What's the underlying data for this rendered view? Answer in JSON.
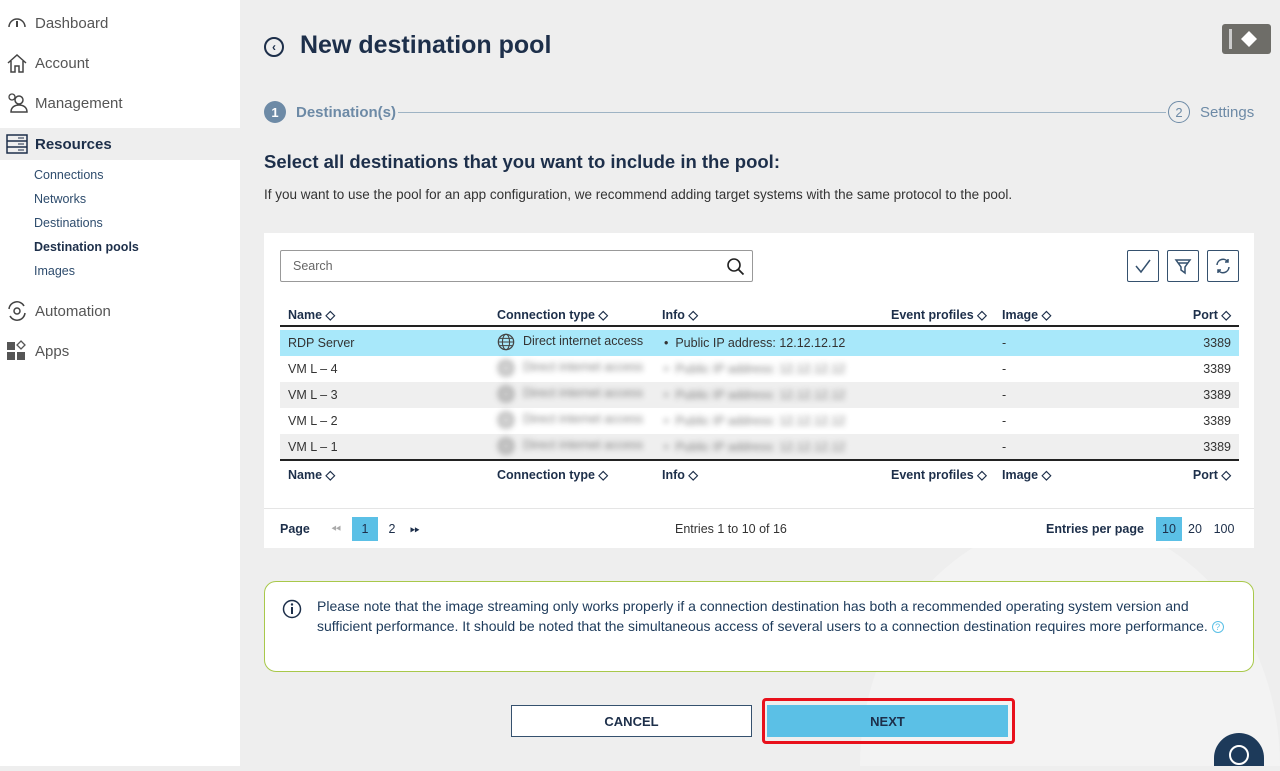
{
  "sidebar": {
    "items": [
      {
        "label": "Dashboard",
        "icon": "dashboard-gauge-icon"
      },
      {
        "label": "Account",
        "icon": "home-icon"
      },
      {
        "label": "Management",
        "icon": "users-icon"
      },
      {
        "label": "Resources",
        "icon": "server-icon",
        "active": true
      },
      {
        "label": "Automation",
        "icon": "automation-gear-icon"
      },
      {
        "label": "Apps",
        "icon": "apps-grid-icon"
      }
    ],
    "sub_items": [
      {
        "label": "Connections"
      },
      {
        "label": "Networks"
      },
      {
        "label": "Destinations"
      },
      {
        "label": "Destination pools",
        "active": true
      },
      {
        "label": "Images"
      }
    ]
  },
  "header": {
    "title": "New destination pool"
  },
  "stepper": [
    {
      "num": "1",
      "label": "Destination(s)",
      "active": true
    },
    {
      "num": "2",
      "label": "Settings"
    }
  ],
  "main": {
    "heading": "Select all destinations that you want to include in the pool:",
    "subtitle": "If you want to use the pool for an app configuration, we recommend adding target systems with the same protocol to the pool.",
    "search_placeholder": "Search"
  },
  "table": {
    "columns": [
      "Name",
      "Connection type",
      "Info",
      "Event profiles",
      "Image",
      "Port"
    ],
    "rows": [
      {
        "name": "RDP Server",
        "conn": "Direct internet access",
        "info": "Public IP address: 12.12.12.12",
        "event": "",
        "image": "-",
        "port": "3389",
        "selected": true
      },
      {
        "name": "VM L – 4",
        "conn": "Direct internet access",
        "info": "Public IP address: 12.12.12.12",
        "event": "",
        "image": "-",
        "port": "3389"
      },
      {
        "name": "VM L – 3",
        "conn": "Direct internet access",
        "info": "Public IP address: 12.12.12.12",
        "event": "",
        "image": "-",
        "port": "3389"
      },
      {
        "name": "VM L – 2",
        "conn": "Direct internet access",
        "info": "Public IP address: 12.12.12.12",
        "event": "",
        "image": "-",
        "port": "3389"
      },
      {
        "name": "VM L – 1",
        "conn": "Direct internet access",
        "info": "Public IP address: 12.12.12.12",
        "event": "",
        "image": "-",
        "port": "3389"
      }
    ]
  },
  "pagination": {
    "label": "Page",
    "pages": [
      "1",
      "2"
    ],
    "current": "1",
    "entries": "Entries 1 to 10 of 16",
    "per_page_label": "Entries per page",
    "per_page_options": [
      "10",
      "20",
      "100"
    ],
    "per_page_selected": "10"
  },
  "notice": {
    "text": "Please note that the image streaming only works properly if a connection destination has both a recommended operating system version and sufficient performance. It should be noted that the simultaneous access of several users to a connection destination requires more performance."
  },
  "buttons": {
    "cancel": "CANCEL",
    "next": "NEXT"
  },
  "colors": {
    "accent": "#5bc0e6",
    "selected_row": "#a8e8fa",
    "notice_border": "#a8c84a",
    "highlight": "#e8101b",
    "navy": "#1d2f4a"
  }
}
